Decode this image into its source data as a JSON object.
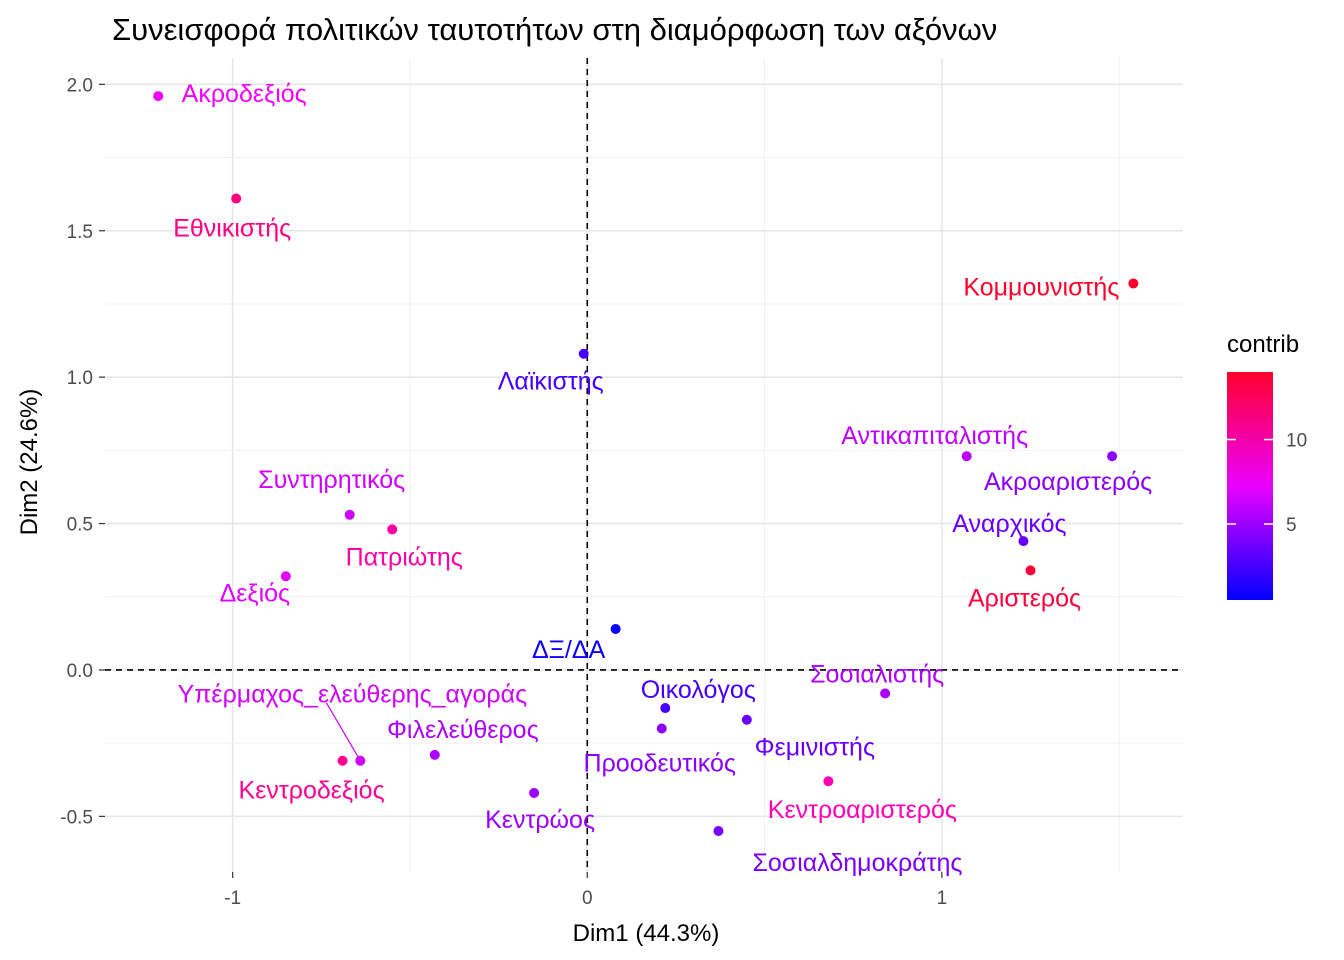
{
  "chart_data": {
    "type": "scatter",
    "title": "Συνεισφορά πολιτικών ταυτοτήτων στη διαμόρφωση των αξόνων",
    "xlabel": "Dim1 (44.3%)",
    "ylabel": "Dim2 (24.6%)",
    "xlim": [
      -1.36,
      1.68
    ],
    "ylim": [
      -0.69,
      2.09
    ],
    "xticks": [
      -1,
      0,
      1
    ],
    "xtick_labels": [
      "-1",
      "0",
      "1"
    ],
    "yticks": [
      -0.5,
      0.0,
      0.5,
      1.0,
      1.5,
      2.0
    ],
    "ytick_labels": [
      "-0.5",
      "0.0",
      "0.5",
      "1.0",
      "1.5",
      "2.0"
    ],
    "grid": true,
    "reference_lines": {
      "x": 0,
      "y": 0,
      "style": "dashed"
    },
    "legend": {
      "title": "contrib",
      "placement": "right",
      "type": "colorbar",
      "range": [
        0.5,
        14
      ],
      "ticks": [
        5,
        10
      ],
      "tick_labels": [
        "5",
        "10"
      ],
      "colors": {
        "low": "#0000ff",
        "high": "#ff0000"
      }
    },
    "points": [
      {
        "label": "Ακροδεξιός",
        "x": -1.21,
        "y": 1.96,
        "contrib": 7.5
      },
      {
        "label": "Εθνικιστής",
        "x": -0.99,
        "y": 1.61,
        "contrib": 11.5
      },
      {
        "label": "Κομμουνιστής",
        "x": 1.54,
        "y": 1.32,
        "contrib": 14.0
      },
      {
        "label": "Λαϊκιστής",
        "x": -0.01,
        "y": 1.08,
        "contrib": 2.5
      },
      {
        "label": "Αντικαπιταλιστής",
        "x": 1.07,
        "y": 0.73,
        "contrib": 6.0
      },
      {
        "label": "Ακροαριστερός",
        "x": 1.48,
        "y": 0.73,
        "contrib": 4.5
      },
      {
        "label": "Συντηρητικός",
        "x": -0.67,
        "y": 0.53,
        "contrib": 6.5
      },
      {
        "label": "Πατριώτης",
        "x": -0.55,
        "y": 0.48,
        "contrib": 10.5
      },
      {
        "label": "Αναρχικός",
        "x": 1.23,
        "y": 0.44,
        "contrib": 3.5
      },
      {
        "label": "Αριστερός",
        "x": 1.25,
        "y": 0.34,
        "contrib": 13.5
      },
      {
        "label": "Δεξιός",
        "x": -0.85,
        "y": 0.32,
        "contrib": 7.0
      },
      {
        "label": "ΔΞ/ΔΑ",
        "x": 0.08,
        "y": 0.14,
        "contrib": 0.8
      },
      {
        "label": "Σοσιαλιστής",
        "x": 0.84,
        "y": -0.08,
        "contrib": 5.5
      },
      {
        "label": "Οικολόγος",
        "x": 0.22,
        "y": -0.13,
        "contrib": 2.5
      },
      {
        "label": "Φεμινιστής",
        "x": 0.45,
        "y": -0.17,
        "contrib": 3.5
      },
      {
        "label": "Προοδευτικός",
        "x": 0.21,
        "y": -0.2,
        "contrib": 4.5
      },
      {
        "label": "Υπέρμαχος_ελεύθερης_αγοράς",
        "x": -0.64,
        "y": -0.31,
        "contrib": 6.5
      },
      {
        "label": "Φιλελεύθερος",
        "x": -0.43,
        "y": -0.29,
        "contrib": 5.5
      },
      {
        "label": "Κεντροδεξιός",
        "x": -0.69,
        "y": -0.31,
        "contrib": 11.0
      },
      {
        "label": "Κεντροαριστερός",
        "x": 0.68,
        "y": -0.38,
        "contrib": 10.0
      },
      {
        "label": "Κεντρώος",
        "x": -0.15,
        "y": -0.42,
        "contrib": 5.0
      },
      {
        "label": "Σοσιαλδημοκράτης",
        "x": 0.37,
        "y": -0.55,
        "contrib": 4.0
      }
    ]
  }
}
